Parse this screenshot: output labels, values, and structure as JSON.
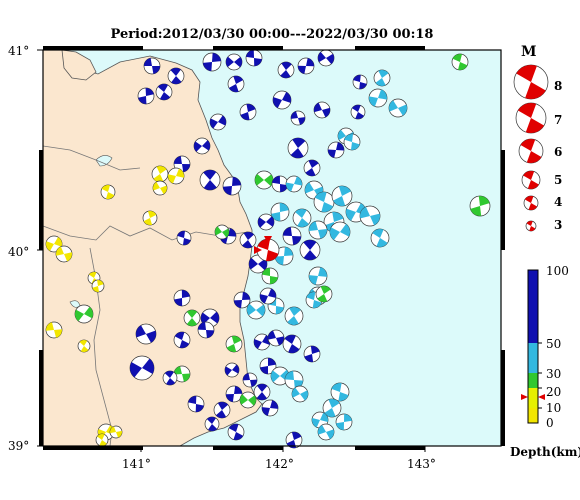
{
  "title": "Period:2012/03/30 00:00---2022/03/30 00:18",
  "lat_labels": [
    "41°",
    "40°",
    "39°"
  ],
  "lon_labels": [
    "141°",
    "142°",
    "143°"
  ],
  "magnitude_legend": {
    "heading": "M",
    "labels": [
      "8",
      "7",
      "6",
      "5",
      "4",
      "3"
    ]
  },
  "depth_scale": {
    "labels": [
      "100",
      "50",
      "30",
      "20",
      "10",
      "0"
    ],
    "unit_label": "Depth(km)"
  },
  "colors": {
    "land": "#fbe7cf",
    "sea": "#dcfafa",
    "depth_0_10": "#f2e600",
    "depth_10_20": "#e6f000",
    "depth_20_30": "#30c830",
    "depth_30_50": "#33b8e0",
    "depth_50_100": "#1010b0",
    "highlight": "#e00000"
  }
}
